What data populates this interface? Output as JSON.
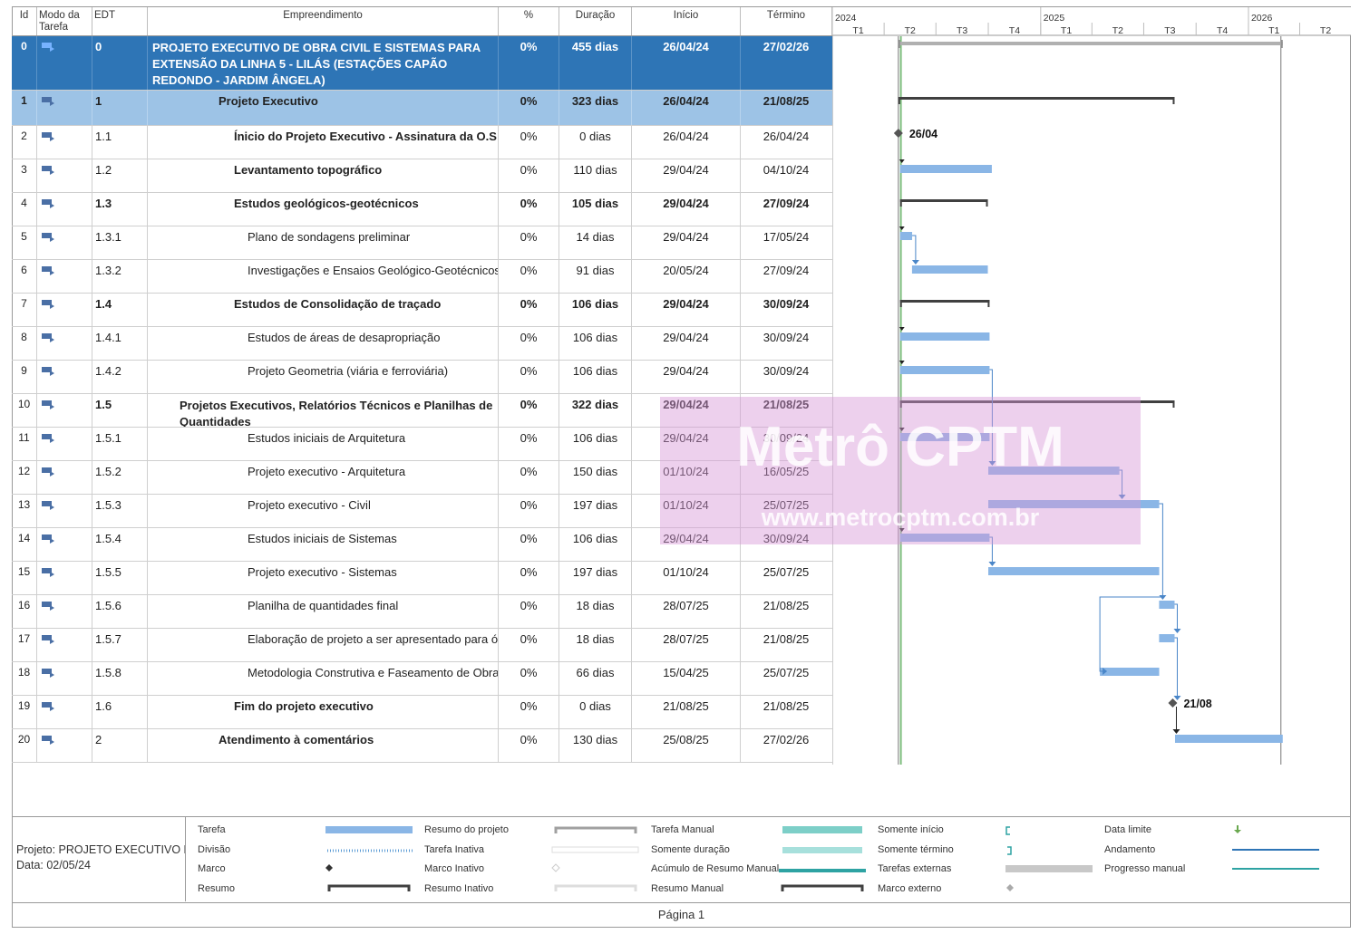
{
  "columns": {
    "id": "Id",
    "mode": "Modo da Tarefa",
    "edt": "EDT",
    "name": "Empreendimento",
    "pct": "%",
    "dur": "Duração",
    "start": "Início",
    "end": "Término"
  },
  "timescale": {
    "years": [
      "2024",
      "2025",
      "2026"
    ],
    "quarters": [
      "T1",
      "T2",
      "T3",
      "T4",
      "T1",
      "T2",
      "T3",
      "T4",
      "T1",
      "T2"
    ]
  },
  "rows": [
    {
      "id": "0",
      "edt": "0",
      "name": "PROJETO EXECUTIVO DE OBRA CIVIL E SISTEMAS PARA EXTENSÃO DA LINHA 5 - LILÁS (ESTAÇÕES CAPÃO REDONDO - JARDIM ÂNGELA)",
      "pct": "0%",
      "dur": "455 dias",
      "start": "26/04/24",
      "end": "27/02/26",
      "level": 0,
      "kind": "project",
      "bold": true
    },
    {
      "id": "1",
      "edt": "1",
      "name": "Projeto Executivo",
      "pct": "0%",
      "dur": "323 dias",
      "start": "26/04/24",
      "end": "21/08/25",
      "level": 1,
      "kind": "summary1",
      "bold": true
    },
    {
      "id": "2",
      "edt": "1.1",
      "name": "Ínicio do Projeto Executivo - Assinatura da O.S",
      "pct": "0%",
      "dur": "0 dias",
      "start": "26/04/24",
      "end": "26/04/24",
      "level": 2,
      "kind": "milestone",
      "bold": false,
      "name_bold": true
    },
    {
      "id": "3",
      "edt": "1.2",
      "name": "Levantamento topográfico",
      "pct": "0%",
      "dur": "110 dias",
      "start": "29/04/24",
      "end": "04/10/24",
      "level": 2,
      "kind": "task",
      "bold": false,
      "name_bold": true
    },
    {
      "id": "4",
      "edt": "1.3",
      "name": "Estudos geológicos-geotécnicos",
      "pct": "0%",
      "dur": "105 dias",
      "start": "29/04/24",
      "end": "27/09/24",
      "level": 2,
      "kind": "summary",
      "bold": true
    },
    {
      "id": "5",
      "edt": "1.3.1",
      "name": "Plano de sondagens preliminar",
      "pct": "0%",
      "dur": "14 dias",
      "start": "29/04/24",
      "end": "17/05/24",
      "level": 3,
      "kind": "task",
      "bold": false
    },
    {
      "id": "6",
      "edt": "1.3.2",
      "name": "Investigações e Ensaios Geológico-Geotécnicos",
      "pct": "0%",
      "dur": "91 dias",
      "start": "20/05/24",
      "end": "27/09/24",
      "level": 3,
      "kind": "task",
      "bold": false
    },
    {
      "id": "7",
      "edt": "1.4",
      "name": "Estudos de Consolidação de traçado",
      "pct": "0%",
      "dur": "106 dias",
      "start": "29/04/24",
      "end": "30/09/24",
      "level": 2,
      "kind": "summary",
      "bold": true
    },
    {
      "id": "8",
      "edt": "1.4.1",
      "name": "Estudos de áreas de desapropriação",
      "pct": "0%",
      "dur": "106 dias",
      "start": "29/04/24",
      "end": "30/09/24",
      "level": 3,
      "kind": "task",
      "bold": false
    },
    {
      "id": "9",
      "edt": "1.4.2",
      "name": "Projeto Geometria (viária e ferroviária)",
      "pct": "0%",
      "dur": "106 dias",
      "start": "29/04/24",
      "end": "30/09/24",
      "level": 3,
      "kind": "task",
      "bold": false
    },
    {
      "id": "10",
      "edt": "1.5",
      "name": "Projetos Executivos, Relatórios Técnicos e Planilhas de Quantidades",
      "pct": "0%",
      "dur": "322 dias",
      "start": "29/04/24",
      "end": "21/08/25",
      "level": 2,
      "kind": "summary",
      "bold": true
    },
    {
      "id": "11",
      "edt": "1.5.1",
      "name": "Estudos iniciais de Arquitetura",
      "pct": "0%",
      "dur": "106 dias",
      "start": "29/04/24",
      "end": "30/09/24",
      "level": 3,
      "kind": "task",
      "bold": false
    },
    {
      "id": "12",
      "edt": "1.5.2",
      "name": "Projeto executivo - Arquitetura",
      "pct": "0%",
      "dur": "150 dias",
      "start": "01/10/24",
      "end": "16/05/25",
      "level": 3,
      "kind": "task",
      "bold": false
    },
    {
      "id": "13",
      "edt": "1.5.3",
      "name": "Projeto executivo - Civil",
      "pct": "0%",
      "dur": "197 dias",
      "start": "01/10/24",
      "end": "25/07/25",
      "level": 3,
      "kind": "task",
      "bold": false
    },
    {
      "id": "14",
      "edt": "1.5.4",
      "name": "Estudos iniciais de Sistemas",
      "pct": "0%",
      "dur": "106 dias",
      "start": "29/04/24",
      "end": "30/09/24",
      "level": 3,
      "kind": "task",
      "bold": false
    },
    {
      "id": "15",
      "edt": "1.5.5",
      "name": "Projeto executivo - Sistemas",
      "pct": "0%",
      "dur": "197 dias",
      "start": "01/10/24",
      "end": "25/07/25",
      "level": 3,
      "kind": "task",
      "bold": false
    },
    {
      "id": "16",
      "edt": "1.5.6",
      "name": "Planilha de quantidades final",
      "pct": "0%",
      "dur": "18 dias",
      "start": "28/07/25",
      "end": "21/08/25",
      "level": 3,
      "kind": "task",
      "bold": false
    },
    {
      "id": "17",
      "edt": "1.5.7",
      "name": "Elaboração de projeto a ser apresentado para órgãos ap",
      "pct": "0%",
      "dur": "18 dias",
      "start": "28/07/25",
      "end": "21/08/25",
      "level": 3,
      "kind": "task",
      "bold": false
    },
    {
      "id": "18",
      "edt": "1.5.8",
      "name": "Metodologia Construtiva e Faseamento de Obras",
      "pct": "0%",
      "dur": "66 dias",
      "start": "15/04/25",
      "end": "25/07/25",
      "level": 3,
      "kind": "task",
      "bold": false
    },
    {
      "id": "19",
      "edt": "1.6",
      "name": "Fim do projeto executivo",
      "pct": "0%",
      "dur": "0 dias",
      "start": "21/08/25",
      "end": "21/08/25",
      "level": 2,
      "kind": "milestone",
      "bold": false,
      "name_bold": true
    },
    {
      "id": "20",
      "edt": "2",
      "name": "Atendimento à comentários",
      "pct": "0%",
      "dur": "130 dias",
      "start": "25/08/25",
      "end": "27/02/26",
      "level": 1,
      "kind": "task",
      "bold": false,
      "name_bold": true
    }
  ],
  "milestone_labels": {
    "start": "26/04",
    "end": "21/08"
  },
  "colors": {
    "project": "#2e75b6",
    "summary1": "#9dc3e6",
    "taskbar": "#8ab6e6",
    "summarybar": "#404040",
    "link": "#4a86c8"
  },
  "watermark": {
    "brand": "Metrô CPTM",
    "url": "www.metrocptm.com.br"
  },
  "legend": {
    "project_line": "Projeto: PROJETO EXECUTIVO D",
    "date_line": "Data: 02/05/24",
    "items": [
      [
        "Tarefa",
        "Divisão",
        "Marco",
        "Resumo"
      ],
      [
        "Resumo do projeto",
        "Tarefa Inativa",
        "Marco Inativo",
        "Resumo Inativo"
      ],
      [
        "Tarefa Manual",
        "Somente duração",
        "Acúmulo de Resumo Manual",
        "Resumo Manual"
      ],
      [
        "Somente início",
        "Somente término",
        "Tarefas externas",
        "Marco externo"
      ],
      [
        "Data limite",
        "Andamento",
        "Progresso manual"
      ]
    ]
  },
  "footer": "Página 1"
}
